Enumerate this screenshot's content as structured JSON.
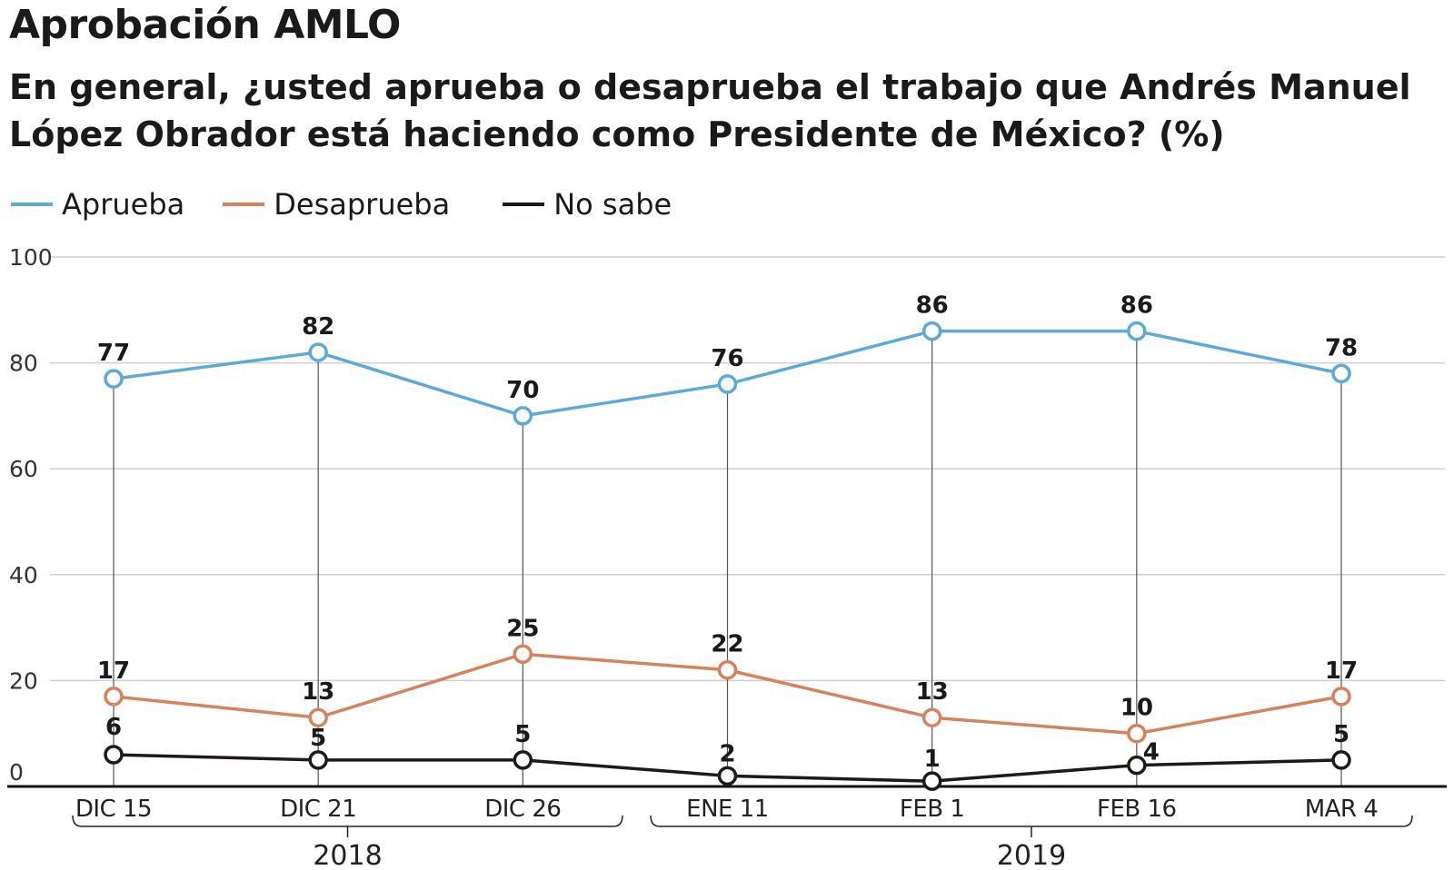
{
  "title": "Aprobación AMLO",
  "subtitle": "En general, ¿usted aprueba o desaprueba el trabajo que Andrés Manuel López Obrador está haciendo como Presidente de México? (%)",
  "colors": {
    "aprueba": "#5aaadc",
    "desaprueba": "#d9825a",
    "no_sabe": "#1e1a18",
    "grid": "#cfcfcf",
    "drop_line": "#555555"
  },
  "chart_data": {
    "type": "line",
    "categories": [
      "DIC 15",
      "DIC 21",
      "DIC 26",
      "ENE 11",
      "FEB 1",
      "FEB 16",
      "MAR 4"
    ],
    "year_groups": [
      {
        "label": "2018",
        "categories": [
          "DIC 15",
          "DIC 21",
          "DIC 26"
        ]
      },
      {
        "label": "2019",
        "categories": [
          "ENE 11",
          "FEB 1",
          "FEB 16",
          "MAR 4"
        ]
      }
    ],
    "series": [
      {
        "name": "Aprueba",
        "key": "aprueba",
        "values": [
          77,
          82,
          70,
          76,
          86,
          86,
          78
        ]
      },
      {
        "name": "Desaprueba",
        "key": "desaprueba",
        "values": [
          17,
          13,
          25,
          22,
          13,
          10,
          17
        ]
      },
      {
        "name": "No sabe",
        "key": "no_sabe",
        "values": [
          6,
          5,
          5,
          2,
          1,
          4,
          5
        ]
      }
    ],
    "yticks": [
      0,
      20,
      40,
      60,
      80,
      100
    ],
    "ylim": [
      0,
      100
    ],
    "grid": true,
    "legend_position": "top-left",
    "data_labels": true
  }
}
